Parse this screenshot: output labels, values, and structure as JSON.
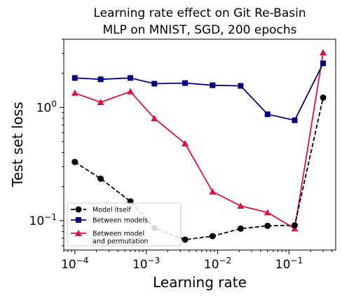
{
  "chart_data": {
    "type": "line",
    "title": "Learning rate effect on Git Re-Basin",
    "subtitle": "MLP on MNIST, SGD, 200 epochs",
    "xlabel": "Learning rate",
    "ylabel": "Test set loss",
    "xscale": "log",
    "yscale": "log",
    "xlim": [
      7e-05,
      0.45
    ],
    "ylim": [
      0.055,
      4.0
    ],
    "x_ticks": [
      {
        "value": 0.0001,
        "base": "10",
        "exp": "−4"
      },
      {
        "value": 0.001,
        "base": "10",
        "exp": "−3"
      },
      {
        "value": 0.01,
        "base": "10",
        "exp": "−2"
      },
      {
        "value": 0.1,
        "base": "10",
        "exp": "−1"
      }
    ],
    "y_ticks": [
      {
        "value": 0.1,
        "base": "10",
        "exp": "−1"
      },
      {
        "value": 1,
        "base": "10",
        "exp": "0"
      }
    ],
    "grid": false,
    "legend_position": "lower-left",
    "x": [
      0.0001,
      0.00023,
      0.0006,
      0.0013,
      0.0035,
      0.0085,
      0.021,
      0.05,
      0.12,
      0.3
    ],
    "series": [
      {
        "name": "Model itself",
        "color": "#000000",
        "marker": "circle",
        "dashed": true,
        "values": [
          0.33,
          0.235,
          0.148,
          0.086,
          0.068,
          0.073,
          0.085,
          0.09,
          0.091,
          1.22
        ]
      },
      {
        "name": "Between models",
        "color": "#00007f",
        "marker": "square",
        "dashed": false,
        "values": [
          1.82,
          1.77,
          1.82,
          1.62,
          1.64,
          1.57,
          1.55,
          0.87,
          0.77,
          2.45
        ]
      },
      {
        "name": "Between model\nand permutation",
        "color": "#dc143c",
        "marker": "triangle",
        "dashed": false,
        "values": [
          1.34,
          1.11,
          1.38,
          0.8,
          0.48,
          0.18,
          0.135,
          0.118,
          0.085,
          3.05
        ]
      }
    ]
  }
}
